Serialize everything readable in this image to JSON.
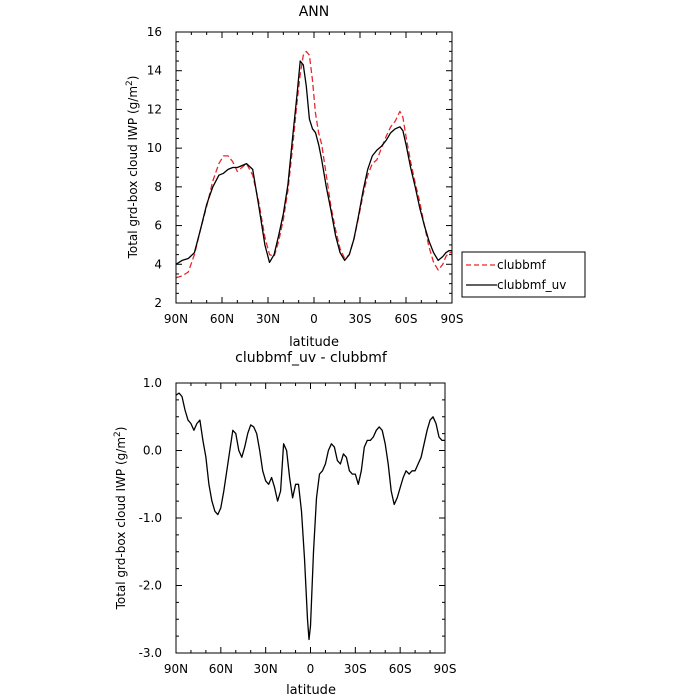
{
  "chart_data": [
    {
      "type": "line",
      "title": "ANN",
      "xlabel": "latitude",
      "ylabel": "Total grd-box cloud IWP (g/m²)",
      "ylabel_parts": [
        "Total grd-box cloud IWP  (g/m",
        "2",
        ")"
      ],
      "x_tick_labels": [
        "90N",
        "60N",
        "30N",
        "0",
        "30S",
        "60S",
        "90S"
      ],
      "x_tick_values": [
        -90,
        -60,
        -30,
        0,
        30,
        60,
        90
      ],
      "xlim": [
        -90,
        90
      ],
      "ylim": [
        2,
        16
      ],
      "y_tick_values": [
        2,
        4,
        6,
        8,
        10,
        12,
        14,
        16
      ],
      "y_tick_labels": [
        "2",
        "4",
        "6",
        "8",
        "10",
        "12",
        "14",
        "16"
      ],
      "grid": false,
      "legend_placement": "right, outside plot",
      "series": [
        {
          "name": "clubbmf",
          "color": "#e8272b",
          "style": "dashed",
          "x": [
            -90,
            -86,
            -82,
            -78,
            -74,
            -70,
            -66,
            -62,
            -59,
            -56,
            -53,
            -50,
            -47,
            -44,
            -40,
            -36,
            -32,
            -29,
            -26,
            -23,
            -20,
            -17,
            -14,
            -11,
            -9,
            -7,
            -5,
            -3,
            -1,
            1,
            3,
            5,
            8,
            11,
            14,
            17,
            20,
            23,
            26,
            29,
            32,
            35,
            38,
            41,
            44,
            47,
            50,
            53,
            56,
            58,
            60,
            63,
            66,
            69,
            72,
            75,
            78,
            81,
            84,
            86,
            88,
            90
          ],
          "y": [
            3.3,
            3.4,
            3.6,
            4.5,
            5.8,
            7.0,
            8.3,
            9.2,
            9.6,
            9.6,
            9.3,
            8.8,
            9.0,
            9.2,
            8.6,
            7.2,
            5.4,
            4.5,
            4.4,
            5.2,
            6.3,
            7.8,
            10.0,
            12.4,
            13.8,
            14.8,
            15.0,
            14.8,
            13.5,
            11.8,
            10.8,
            10.2,
            8.6,
            7.0,
            5.8,
            4.8,
            4.3,
            4.5,
            5.3,
            6.4,
            7.6,
            8.6,
            9.2,
            9.4,
            10.0,
            10.6,
            11.1,
            11.4,
            11.9,
            11.6,
            10.6,
            9.3,
            8.2,
            7.2,
            6.0,
            4.9,
            4.1,
            3.7,
            4.0,
            4.4,
            4.6,
            4.6
          ]
        },
        {
          "name": "clubbmf_uv",
          "color": "#000000",
          "style": "solid",
          "x": [
            -90,
            -86,
            -82,
            -78,
            -74,
            -70,
            -66,
            -62,
            -59,
            -56,
            -53,
            -50,
            -47,
            -44,
            -40,
            -36,
            -32,
            -29,
            -26,
            -23,
            -20,
            -17,
            -14,
            -11,
            -9,
            -7,
            -5,
            -3,
            -1,
            1,
            3,
            5,
            8,
            11,
            14,
            17,
            20,
            23,
            26,
            29,
            32,
            35,
            38,
            41,
            44,
            47,
            50,
            53,
            56,
            58,
            60,
            63,
            66,
            69,
            72,
            75,
            78,
            81,
            84,
            86,
            88,
            90
          ],
          "y": [
            4.0,
            4.2,
            4.3,
            4.6,
            5.8,
            7.1,
            8.0,
            8.6,
            8.7,
            8.9,
            9.0,
            9.0,
            9.1,
            9.2,
            8.9,
            7.0,
            5.0,
            4.1,
            4.5,
            5.5,
            6.6,
            8.1,
            10.5,
            12.8,
            14.5,
            14.3,
            13.2,
            11.5,
            11.0,
            10.8,
            10.2,
            9.4,
            8.0,
            6.8,
            5.5,
            4.6,
            4.2,
            4.5,
            5.3,
            6.5,
            7.8,
            8.9,
            9.6,
            9.9,
            10.1,
            10.4,
            10.8,
            11.0,
            11.1,
            10.9,
            10.2,
            9.0,
            8.0,
            6.9,
            6.0,
            5.2,
            4.6,
            4.2,
            4.4,
            4.6,
            4.7,
            4.7
          ]
        }
      ],
      "legend": [
        {
          "label": "clubbmf"
        },
        {
          "label": "clubbmf_uv"
        }
      ]
    },
    {
      "type": "line",
      "title": "clubbmf_uv  -  clubbmf",
      "xlabel": "latitude",
      "ylabel": "Total grd-box cloud IWP (g/m²)",
      "ylabel_parts": [
        "Total grd-box cloud IWP  (g/m",
        "2",
        ")"
      ],
      "x_tick_labels": [
        "90N",
        "60N",
        "30N",
        "0",
        "30S",
        "60S",
        "90S"
      ],
      "x_tick_values": [
        -90,
        -60,
        -30,
        0,
        30,
        60,
        90
      ],
      "xlim": [
        -90,
        90
      ],
      "ylim": [
        -3.0,
        1.0
      ],
      "y_tick_values": [
        -3.0,
        -2.0,
        -1.0,
        0.0,
        1.0
      ],
      "y_tick_labels": [
        "-3.0",
        "-2.0",
        "-1.0",
        "0.0",
        "1.0"
      ],
      "grid": false,
      "series": [
        {
          "color": "#000000",
          "style": "solid",
          "x": [
            -90,
            -88,
            -86,
            -84,
            -82,
            -80,
            -78,
            -76,
            -74,
            -72,
            -70,
            -68,
            -66,
            -64,
            -62,
            -60,
            -58,
            -56,
            -54,
            -52,
            -50,
            -48,
            -46,
            -44,
            -42,
            -40,
            -38,
            -36,
            -34,
            -32,
            -30,
            -28,
            -26,
            -24,
            -22,
            -20,
            -18,
            -16,
            -14,
            -12,
            -10,
            -8,
            -6,
            -4,
            -2,
            -1,
            0,
            2,
            4,
            6,
            8,
            10,
            12,
            14,
            16,
            18,
            20,
            22,
            24,
            26,
            28,
            30,
            32,
            34,
            36,
            38,
            40,
            42,
            44,
            46,
            48,
            50,
            52,
            54,
            56,
            58,
            60,
            62,
            64,
            66,
            68,
            70,
            72,
            74,
            76,
            78,
            80,
            82,
            84,
            86,
            88,
            90
          ],
          "y": [
            0.82,
            0.85,
            0.8,
            0.6,
            0.45,
            0.4,
            0.3,
            0.4,
            0.45,
            0.15,
            -0.1,
            -0.5,
            -0.75,
            -0.9,
            -0.95,
            -0.85,
            -0.6,
            -0.3,
            0.0,
            0.3,
            0.25,
            0.0,
            -0.1,
            0.05,
            0.25,
            0.38,
            0.35,
            0.25,
            0.0,
            -0.3,
            -0.45,
            -0.5,
            -0.4,
            -0.55,
            -0.75,
            -0.6,
            0.1,
            0.0,
            -0.4,
            -0.7,
            -0.5,
            -0.5,
            -0.9,
            -1.6,
            -2.5,
            -2.8,
            -2.6,
            -1.5,
            -0.7,
            -0.35,
            -0.3,
            -0.2,
            0.0,
            0.1,
            0.05,
            -0.15,
            -0.2,
            -0.05,
            -0.1,
            -0.3,
            -0.35,
            -0.35,
            -0.5,
            -0.3,
            0.05,
            0.15,
            0.15,
            0.2,
            0.3,
            0.35,
            0.3,
            0.1,
            -0.2,
            -0.6,
            -0.8,
            -0.7,
            -0.55,
            -0.4,
            -0.3,
            -0.35,
            -0.3,
            -0.3,
            -0.2,
            -0.1,
            0.1,
            0.3,
            0.45,
            0.5,
            0.4,
            0.2,
            0.15,
            0.15
          ]
        }
      ]
    }
  ]
}
